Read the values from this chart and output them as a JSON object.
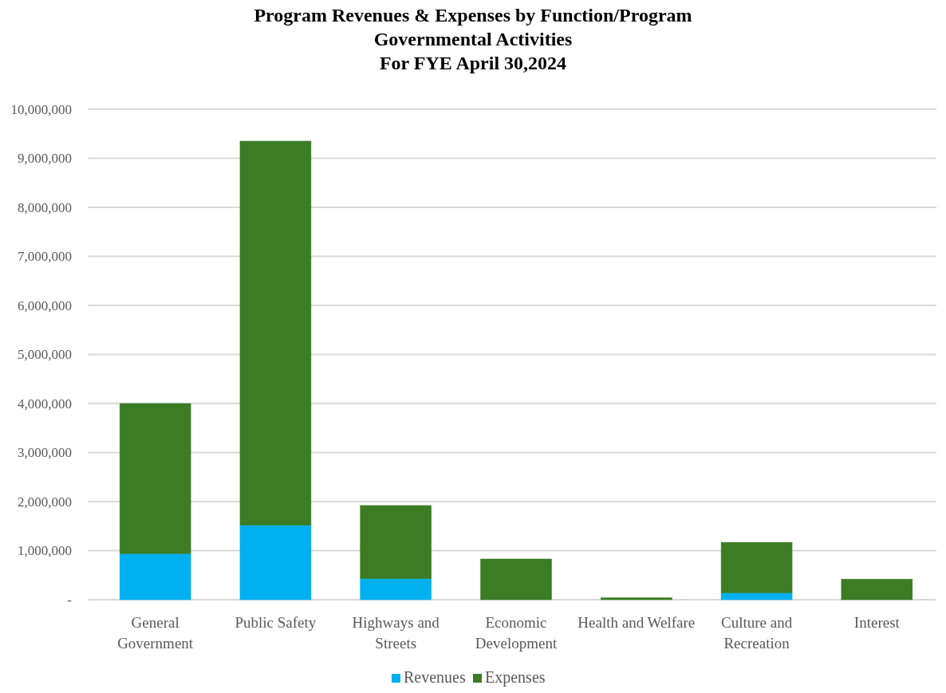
{
  "chart_data": {
    "type": "bar",
    "title": "Program Revenues & Expenses by Function/Program\nGovernmental Activities\nFor FYE April 30,2024",
    "categories": [
      "General\nGovernment",
      "Public Safety",
      "Highways and\nStreets",
      "Economic\nDevelopment",
      "Health and Welfare",
      "Culture and\nRecreation",
      "Interest"
    ],
    "series": [
      {
        "name": "Revenues",
        "color": "#00b0f0",
        "values": [
          940000,
          1520000,
          430000,
          0,
          0,
          140000,
          0
        ]
      },
      {
        "name": "Expenses",
        "color": "#3b7c24",
        "values": [
          3060000,
          7830000,
          1490000,
          830000,
          40000,
          1030000,
          420000
        ]
      }
    ],
    "stacked": true,
    "ylim": [
      0,
      10000000
    ],
    "yticks": [
      {
        "value": 0,
        "label": "-"
      },
      {
        "value": 1000000,
        "label": "1,000,000"
      },
      {
        "value": 2000000,
        "label": "2,000,000"
      },
      {
        "value": 3000000,
        "label": "3,000,000"
      },
      {
        "value": 4000000,
        "label": "4,000,000"
      },
      {
        "value": 5000000,
        "label": "5,000,000"
      },
      {
        "value": 6000000,
        "label": "6,000,000"
      },
      {
        "value": 7000000,
        "label": "7,000,000"
      },
      {
        "value": 8000000,
        "label": "8,000,000"
      },
      {
        "value": 9000000,
        "label": "9,000,000"
      },
      {
        "value": 10000000,
        "label": "10,000,000"
      }
    ],
    "grid": "y",
    "legend": "bottom"
  }
}
